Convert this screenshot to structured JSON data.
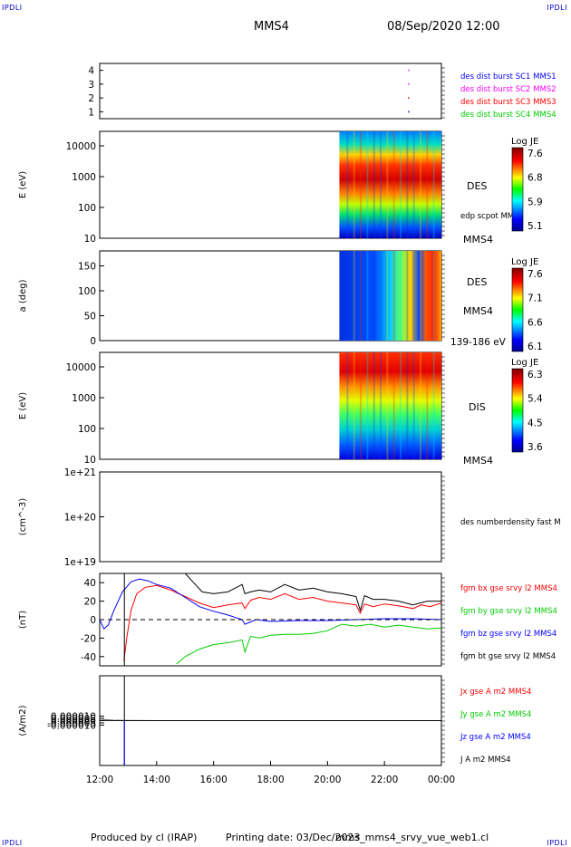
{
  "header": {
    "corner_tl": "IPDLI",
    "corner_tr": "IPDLI",
    "corner_bl": "IPDLI",
    "corner_br": "IPDLI",
    "spacecraft": "MMS4",
    "datetime": "08/Sep/2020 12:00"
  },
  "footer": {
    "produced_by": "Produced by cl (IRAP)",
    "printing_date": "Printing date: 03/Dec/2023",
    "filename": "mms_mms4_srvy_vue_web1.cl"
  },
  "colors": {
    "blue": "#0000ff",
    "magenta": "#ff00ff",
    "red": "#ff0000",
    "green": "#00cc00",
    "black": "#000000"
  },
  "chart_data": [
    {
      "type": "scatter",
      "panel": "burst-availability",
      "ylim": [
        0.5,
        4.5
      ],
      "yticks": [
        "1",
        "2",
        "3",
        "4"
      ],
      "legend": [
        {
          "label": "des dist burst SC1 MMS1",
          "color": "#0000ff"
        },
        {
          "label": "des dist burst SC2 MMS2",
          "color": "#ff00ff"
        },
        {
          "label": "des dist burst SC3 MMS3",
          "color": "#ff0000"
        },
        {
          "label": "des dist burst SC4 MMS4",
          "color": "#00cc00"
        }
      ],
      "points": [
        {
          "x": "22:50",
          "y": 4,
          "color": "#ff00ff"
        },
        {
          "x": "22:50",
          "y": 3,
          "color": "#ff00ff"
        },
        {
          "x": "22:50",
          "y": 2,
          "color": "#ff0000"
        },
        {
          "x": "22:50",
          "y": 1,
          "color": "#0000ff"
        }
      ]
    },
    {
      "type": "heatmap",
      "panel": "des-energy-spectrogram",
      "ylabel": "E (eV)",
      "yscale": "log",
      "yticks": [
        "10",
        "100",
        "1000",
        "10000"
      ],
      "label": "DES",
      "extra_label": "edp scpot MMS4",
      "spacecraft_label": "MMS4",
      "colorbar": {
        "title": "Log JE",
        "ticks": [
          "7.6",
          "6.8",
          "5.9",
          "5.1"
        ]
      },
      "data_start": "20:25",
      "data_end": "00:00"
    },
    {
      "type": "heatmap",
      "panel": "des-pitch-angle",
      "ylabel": "a (deg)",
      "yticks": [
        "0",
        "50",
        "100",
        "150"
      ],
      "ylim": [
        0,
        180
      ],
      "label": "DES",
      "spacecraft_label": "MMS4",
      "energy_range": "139-186 eV",
      "colorbar": {
        "title": "Log JE",
        "ticks": [
          "7.6",
          "7.1",
          "6.6",
          "6.1"
        ]
      },
      "data_start": "20:25",
      "data_end": "00:00"
    },
    {
      "type": "heatmap",
      "panel": "dis-energy-spectrogram",
      "ylabel": "E (eV)",
      "yscale": "log",
      "yticks": [
        "10",
        "100",
        "1000",
        "10000"
      ],
      "label": "DIS",
      "spacecraft_label": "MMS4",
      "colorbar": {
        "title": "Log JE",
        "ticks": [
          "6.3",
          "5.4",
          "4.5",
          "3.6"
        ]
      },
      "data_start": "20:25",
      "data_end": "00:00"
    },
    {
      "type": "line",
      "panel": "density",
      "ylabel": "(cm^-3)",
      "yscale": "log",
      "yticks": [
        "1e+19",
        "1e+20",
        "1e+21"
      ],
      "legend": [
        {
          "label": "des numberdensity fast M",
          "color": "#000000"
        }
      ],
      "series": []
    },
    {
      "type": "line",
      "panel": "magnetic-field",
      "ylabel": "(nT)",
      "ylim": [
        -50,
        50
      ],
      "yticks": [
        "-40",
        "-20",
        "0",
        "20",
        "40"
      ],
      "legend": [
        {
          "label": "fgm bx gse srvy l2 MMS4",
          "color": "#ff0000"
        },
        {
          "label": "fgm by gse srvy l2 MMS4",
          "color": "#00cc00"
        },
        {
          "label": "fgm bz gse srvy l2 MMS4",
          "color": "#0000ff"
        },
        {
          "label": "fgm bt gse srvy l2 MMS4",
          "color": "#000000"
        }
      ],
      "series": [
        {
          "name": "fgm bx gse srvy l2 MMS4",
          "color": "#ff0000",
          "x": [
            12.85,
            12.95,
            13.1,
            13.3,
            13.6,
            14.0,
            14.5,
            15.0,
            15.5,
            16.0,
            16.5,
            17.0,
            17.1,
            17.3,
            17.6,
            18.0,
            18.5,
            19.0,
            19.5,
            20.0,
            20.5,
            21.0,
            21.15,
            21.3,
            21.6,
            22.0,
            22.5,
            23.0,
            23.3,
            23.6,
            24.0
          ],
          "y": [
            -45,
            -20,
            10,
            28,
            35,
            37,
            32,
            25,
            18,
            13,
            16,
            18,
            12,
            21,
            24,
            22,
            28,
            22,
            24,
            20,
            18,
            16,
            7,
            17,
            14,
            17,
            15,
            12,
            16,
            14,
            18
          ]
        },
        {
          "name": "fgm by gse srvy l2 MMS4",
          "color": "#00cc00",
          "x": [
            14.7,
            15.0,
            15.5,
            16.0,
            16.5,
            17.0,
            17.1,
            17.3,
            17.6,
            18.0,
            18.5,
            19.0,
            19.5,
            20.0,
            20.5,
            21.0,
            21.5,
            22.0,
            22.5,
            23.0,
            23.5,
            24.0
          ],
          "y": [
            -48,
            -40,
            -32,
            -27,
            -25,
            -22,
            -35,
            -18,
            -20,
            -17,
            -16,
            -16,
            -15,
            -12,
            -5,
            -7,
            -5,
            -8,
            -6,
            -8,
            -10,
            -9
          ]
        },
        {
          "name": "fgm bz gse srvy l2 MMS4",
          "color": "#0000ff",
          "x": [
            12.0,
            12.15,
            12.3,
            12.5,
            12.8,
            13.1,
            13.4,
            13.7,
            14.0,
            14.5,
            15.0,
            15.5,
            16.0,
            16.5,
            17.0,
            17.1,
            17.5,
            18.0,
            19.0,
            20.0,
            21.0,
            22.0,
            23.0,
            24.0
          ],
          "y": [
            0,
            -10,
            -6,
            10,
            30,
            41,
            44,
            42,
            38,
            34,
            24,
            14,
            9,
            5,
            0,
            -5,
            0,
            -2,
            -1,
            -1,
            0,
            1,
            1,
            0
          ]
        },
        {
          "name": "fgm bt gse srvy l2 MMS4",
          "color": "#000000",
          "x": [
            15.0,
            15.3,
            15.6,
            16.0,
            16.5,
            17.0,
            17.1,
            17.3,
            17.6,
            18.0,
            18.5,
            19.0,
            19.5,
            20.0,
            20.5,
            21.0,
            21.15,
            21.3,
            21.6,
            22.0,
            22.5,
            23.0,
            23.5,
            24.0
          ],
          "y": [
            50,
            40,
            30,
            28,
            30,
            38,
            28,
            30,
            32,
            30,
            38,
            32,
            34,
            30,
            28,
            25,
            10,
            26,
            22,
            22,
            20,
            16,
            20,
            20
          ]
        }
      ],
      "vline_x": "12:52"
    },
    {
      "type": "line",
      "panel": "current-density",
      "ylabel": "(A/m2)",
      "ylim": [
        -0.0001,
        0.0001
      ],
      "yticks": [
        "0.000010",
        "0.000005",
        "0.000000",
        "-0.000005",
        "-0.000010"
      ],
      "legend": [
        {
          "label": "Jx gse A m2 MMS4",
          "color": "#ff0000"
        },
        {
          "label": "Jy gse A m2 MMS4",
          "color": "#00cc00"
        },
        {
          "label": "Jz gse A m2 MMS4",
          "color": "#0000ff"
        },
        {
          "label": "J A m2 MMS4",
          "color": "#000000"
        }
      ],
      "series": [
        {
          "name": "J A m2 MMS4",
          "color": "#000000",
          "x": [
            12.0,
            12.2,
            12.5,
            13.0,
            14.0,
            15.0,
            16.0,
            17.0,
            18.0,
            20.0,
            22.0,
            24.0
          ],
          "y": [
            2e-07,
            1.2e-06,
            4e-07,
            2e-07,
            1e-07,
            5e-08,
            5e-08,
            5e-08,
            5e-08,
            5e-08,
            5e-08,
            5e-08
          ]
        }
      ],
      "vline_x": "12:52"
    }
  ],
  "time_axis": {
    "labels": [
      "12:00",
      "14:00",
      "16:00",
      "18:00",
      "20:00",
      "22:00",
      "00:00"
    ]
  }
}
